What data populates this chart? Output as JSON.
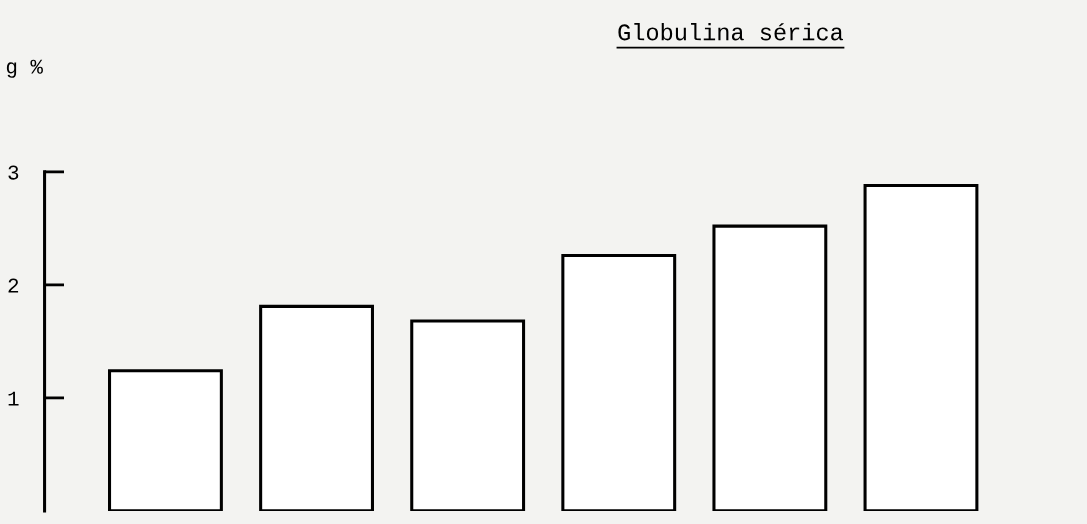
{
  "chart_data": {
    "type": "bar",
    "title": "Globulina sérica",
    "ylabel": "g %",
    "categories": [
      null,
      null,
      null,
      null,
      null,
      null
    ],
    "values": [
      1.24,
      1.81,
      1.68,
      2.26,
      2.52,
      2.88
    ],
    "color": "#ffffff",
    "ylim": [
      0,
      3
    ],
    "yticks": [
      1,
      2,
      3
    ],
    "grid": false
  }
}
